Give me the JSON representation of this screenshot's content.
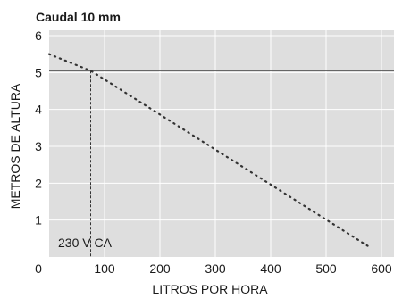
{
  "chart_data": {
    "type": "line",
    "title": "Caudal 10 mm",
    "xlabel": "LITROS POR HORA",
    "ylabel": "METROS DE ALTURA",
    "xlim": [
      0,
      600
    ],
    "ylim": [
      0,
      6
    ],
    "x_ticks": [
      "0",
      "100",
      "200",
      "300",
      "400",
      "500",
      "600"
    ],
    "y_ticks": [
      "1",
      "2",
      "3",
      "4",
      "5",
      "6"
    ],
    "grid": true,
    "annotation": "230 V CA",
    "reference_lines": {
      "horizontal_y": 5.05,
      "vertical_x": 75
    },
    "series": [
      {
        "style": "dotted",
        "x": [
          0,
          75,
          575
        ],
        "y": [
          5.5,
          5.05,
          0.3
        ]
      }
    ],
    "colors": {
      "plot_background": "#dedede",
      "grid": "#ffffff",
      "line": "#333333",
      "reference_line": "#555555"
    }
  }
}
